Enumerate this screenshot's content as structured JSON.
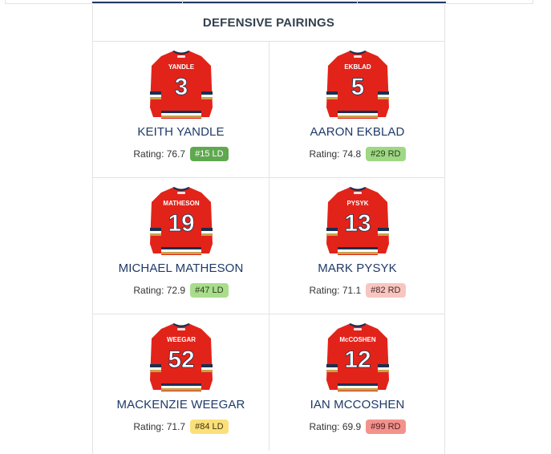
{
  "header": {
    "title": "DEFENSIVE PAIRINGS"
  },
  "players": [
    {
      "jersey_name": "YANDLE",
      "number": "3",
      "name": "KEITH YANDLE",
      "rating_label": "Rating: 76.7",
      "rank": "#15 LD",
      "badge_bg": "#5fa84f",
      "badge_fg": "#ffffff"
    },
    {
      "jersey_name": "EKBLAD",
      "number": "5",
      "name": "AARON EKBLAD",
      "rating_label": "Rating: 74.8",
      "rank": "#29 RD",
      "badge_bg": "#9fd884",
      "badge_fg": "#2b3d20"
    },
    {
      "jersey_name": "MATHESON",
      "number": "19",
      "name": "MICHAEL MATHESON",
      "rating_label": "Rating: 72.9",
      "rank": "#47 LD",
      "badge_bg": "#a9dd8c",
      "badge_fg": "#2b3d20"
    },
    {
      "jersey_name": "PYSYK",
      "number": "13",
      "name": "MARK PYSYK",
      "rating_label": "Rating: 71.1",
      "rank": "#82 RD",
      "badge_bg": "#f8c6c0",
      "badge_fg": "#4a2a2a"
    },
    {
      "jersey_name": "WEEGAR",
      "number": "52",
      "name": "MACKENZIE WEEGAR",
      "rating_label": "Rating: 71.7",
      "rank": "#84 LD",
      "badge_bg": "#fbe07a",
      "badge_fg": "#3e3410"
    },
    {
      "jersey_name": "McCOSHEN",
      "number": "12",
      "name": "IAN MCCOSHEN",
      "rating_label": "Rating: 69.9",
      "rank": "#99 RD",
      "badge_bg": "#f3928c",
      "badge_fg": "#4a1e1e"
    }
  ],
  "colors": {
    "jersey_red": "#e2231a",
    "jersey_gold": "#c9a24a",
    "jersey_navy": "#1c2f4f",
    "name_blue": "#1f3a68"
  }
}
